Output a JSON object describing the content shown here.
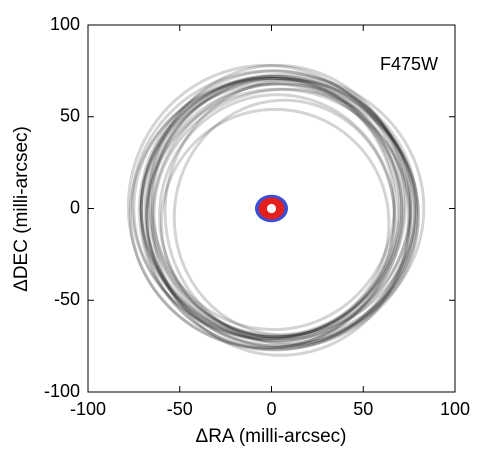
{
  "chart_data": {
    "type": "ellipse",
    "annotation": "F475W",
    "x_label": "ΔRA (milli-arcsec)",
    "y_label": "ΔDEC (milli-arcsec)",
    "xlim": [
      -100,
      100
    ],
    "ylim": [
      -100,
      100
    ],
    "xticks": [
      -100,
      -50,
      0,
      50,
      100
    ],
    "yticks": [
      -100,
      -50,
      0,
      50,
      100
    ],
    "ring_color": "#000000",
    "rings": [
      {
        "x": 0,
        "y": 2,
        "rx": 76,
        "ry": 73
      },
      {
        "x": 2,
        "y": -1,
        "rx": 74,
        "ry": 76
      },
      {
        "x": 3,
        "y": 0,
        "rx": 72,
        "ry": 72
      },
      {
        "x": -1,
        "y": -2,
        "rx": 70,
        "ry": 74
      },
      {
        "x": 4,
        "y": 1,
        "rx": 75,
        "ry": 71
      },
      {
        "x": 1,
        "y": -3,
        "rx": 78,
        "ry": 74
      },
      {
        "x": 5,
        "y": -2,
        "rx": 73,
        "ry": 73
      },
      {
        "x": 2,
        "y": 1,
        "rx": 68,
        "ry": 70
      },
      {
        "x": 0,
        "y": -1,
        "rx": 71,
        "ry": 69
      },
      {
        "x": 6,
        "y": -4,
        "rx": 74,
        "ry": 72
      },
      {
        "x": 3,
        "y": 3,
        "rx": 70,
        "ry": 75
      },
      {
        "x": -2,
        "y": 0,
        "rx": 73,
        "ry": 71
      },
      {
        "x": 4,
        "y": -5,
        "rx": 72,
        "ry": 70
      },
      {
        "x": 1,
        "y": 2,
        "rx": 66,
        "ry": 68
      },
      {
        "x": 5,
        "y": -6,
        "rx": 70,
        "ry": 74
      },
      {
        "x": 8,
        "y": -3,
        "rx": 72,
        "ry": 68
      },
      {
        "x": 2,
        "y": -8,
        "rx": 62,
        "ry": 62
      },
      {
        "x": 7,
        "y": -5,
        "rx": 60,
        "ry": 64
      },
      {
        "x": 10,
        "y": -2,
        "rx": 68,
        "ry": 72
      },
      {
        "x": 3,
        "y": -4,
        "rx": 64,
        "ry": 66
      },
      {
        "x": -3,
        "y": 1,
        "rx": 75,
        "ry": 77
      },
      {
        "x": 6,
        "y": 0,
        "rx": 77,
        "ry": 73
      }
    ],
    "center_markers": [
      {
        "x": 0,
        "y": 0,
        "rx": 9,
        "ry": 7.5,
        "color": "#3a4fd6"
      },
      {
        "x": 0,
        "y": 0,
        "rx": 7,
        "ry": 6,
        "color": "#e3201c"
      },
      {
        "x": 0,
        "y": 0,
        "rx": 2.5,
        "ry": 2.5,
        "color": "#ffffff"
      }
    ]
  }
}
